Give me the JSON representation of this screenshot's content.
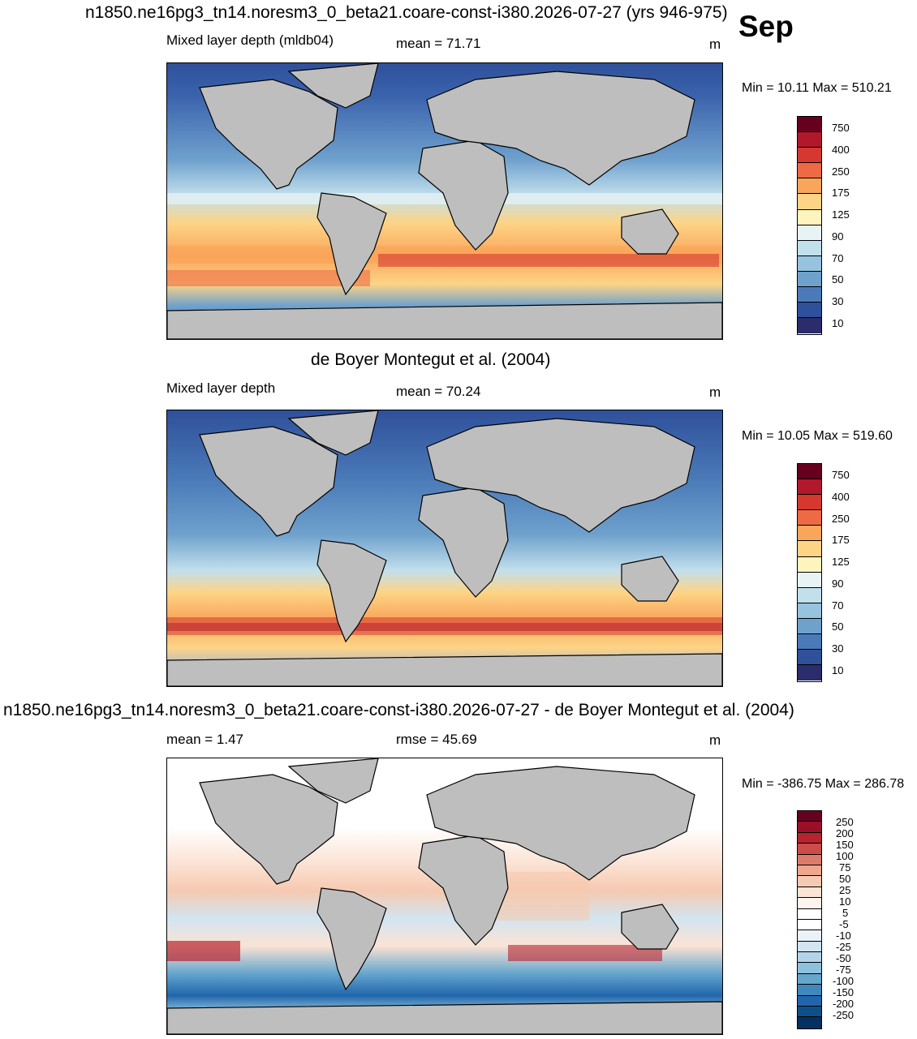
{
  "header": {
    "title": "n1850.ne16pg3_tn14.noresm3_0_beta21.coare-const-i380.2026-07-27 (yrs 946-975)",
    "month": "Sep"
  },
  "panels": [
    {
      "id": "model",
      "left_label": "Mixed layer depth (mldb04)",
      "center_label": "mean =  71.71",
      "units": "m",
      "minmax": "Min =  10.11 Max = 510.21",
      "colorbar_labels": [
        "750",
        "400",
        "250",
        "175",
        "125",
        "90",
        "70",
        "50",
        "30",
        "10"
      ],
      "colorbar_colors": [
        "#67001f",
        "#b2182b",
        "#d6382f",
        "#ee6a45",
        "#f9a55a",
        "#fdd486",
        "#fff3be",
        "#e8f3f6",
        "#c2dfec",
        "#97c3df",
        "#6fa1cd",
        "#4a7ab8",
        "#2f509a",
        "#2a2c6c"
      ]
    },
    {
      "id": "obs",
      "panel_title": "de Boyer Montegut et al. (2004)",
      "left_label": "Mixed layer depth",
      "center_label": "mean =  70.24",
      "units": "m",
      "minmax": "Min =  10.05 Max = 519.60",
      "colorbar_labels": [
        "750",
        "400",
        "250",
        "175",
        "125",
        "90",
        "70",
        "50",
        "30",
        "10"
      ],
      "colorbar_colors": [
        "#67001f",
        "#b2182b",
        "#d6382f",
        "#ee6a45",
        "#f9a55a",
        "#fdd486",
        "#fff3be",
        "#e8f3f6",
        "#c2dfec",
        "#97c3df",
        "#6fa1cd",
        "#4a7ab8",
        "#2f509a",
        "#2a2c6c"
      ]
    },
    {
      "id": "diff",
      "panel_title": "n1850.ne16pg3_tn14.noresm3_0_beta21.coare-const-i380.2026-07-27 - de Boyer Montegut et al. (2004)",
      "left_label": "mean =   1.47",
      "center_label": "rmse =  45.69",
      "units": "m",
      "minmax": "Min = -386.75 Max = 286.78",
      "colorbar_labels": [
        "250",
        "200",
        "150",
        "100",
        "75",
        "50",
        "25",
        "10",
        "5",
        "-5",
        "-10",
        "-25",
        "-50",
        "-75",
        "-100",
        "-150",
        "-200",
        "-250"
      ],
      "colorbar_colors": [
        "#67001f",
        "#9b1029",
        "#b7232f",
        "#cc4c4a",
        "#dd7b6a",
        "#eda78d",
        "#f6c9b1",
        "#fbe3d5",
        "#fff3ee",
        "#ffffff",
        "#ffffff",
        "#eaf2f8",
        "#d2e5f0",
        "#b3d4e8",
        "#8ec1dc",
        "#66a6cd",
        "#3f88bd",
        "#2166ac",
        "#0f4f8a",
        "#053061"
      ]
    }
  ]
}
